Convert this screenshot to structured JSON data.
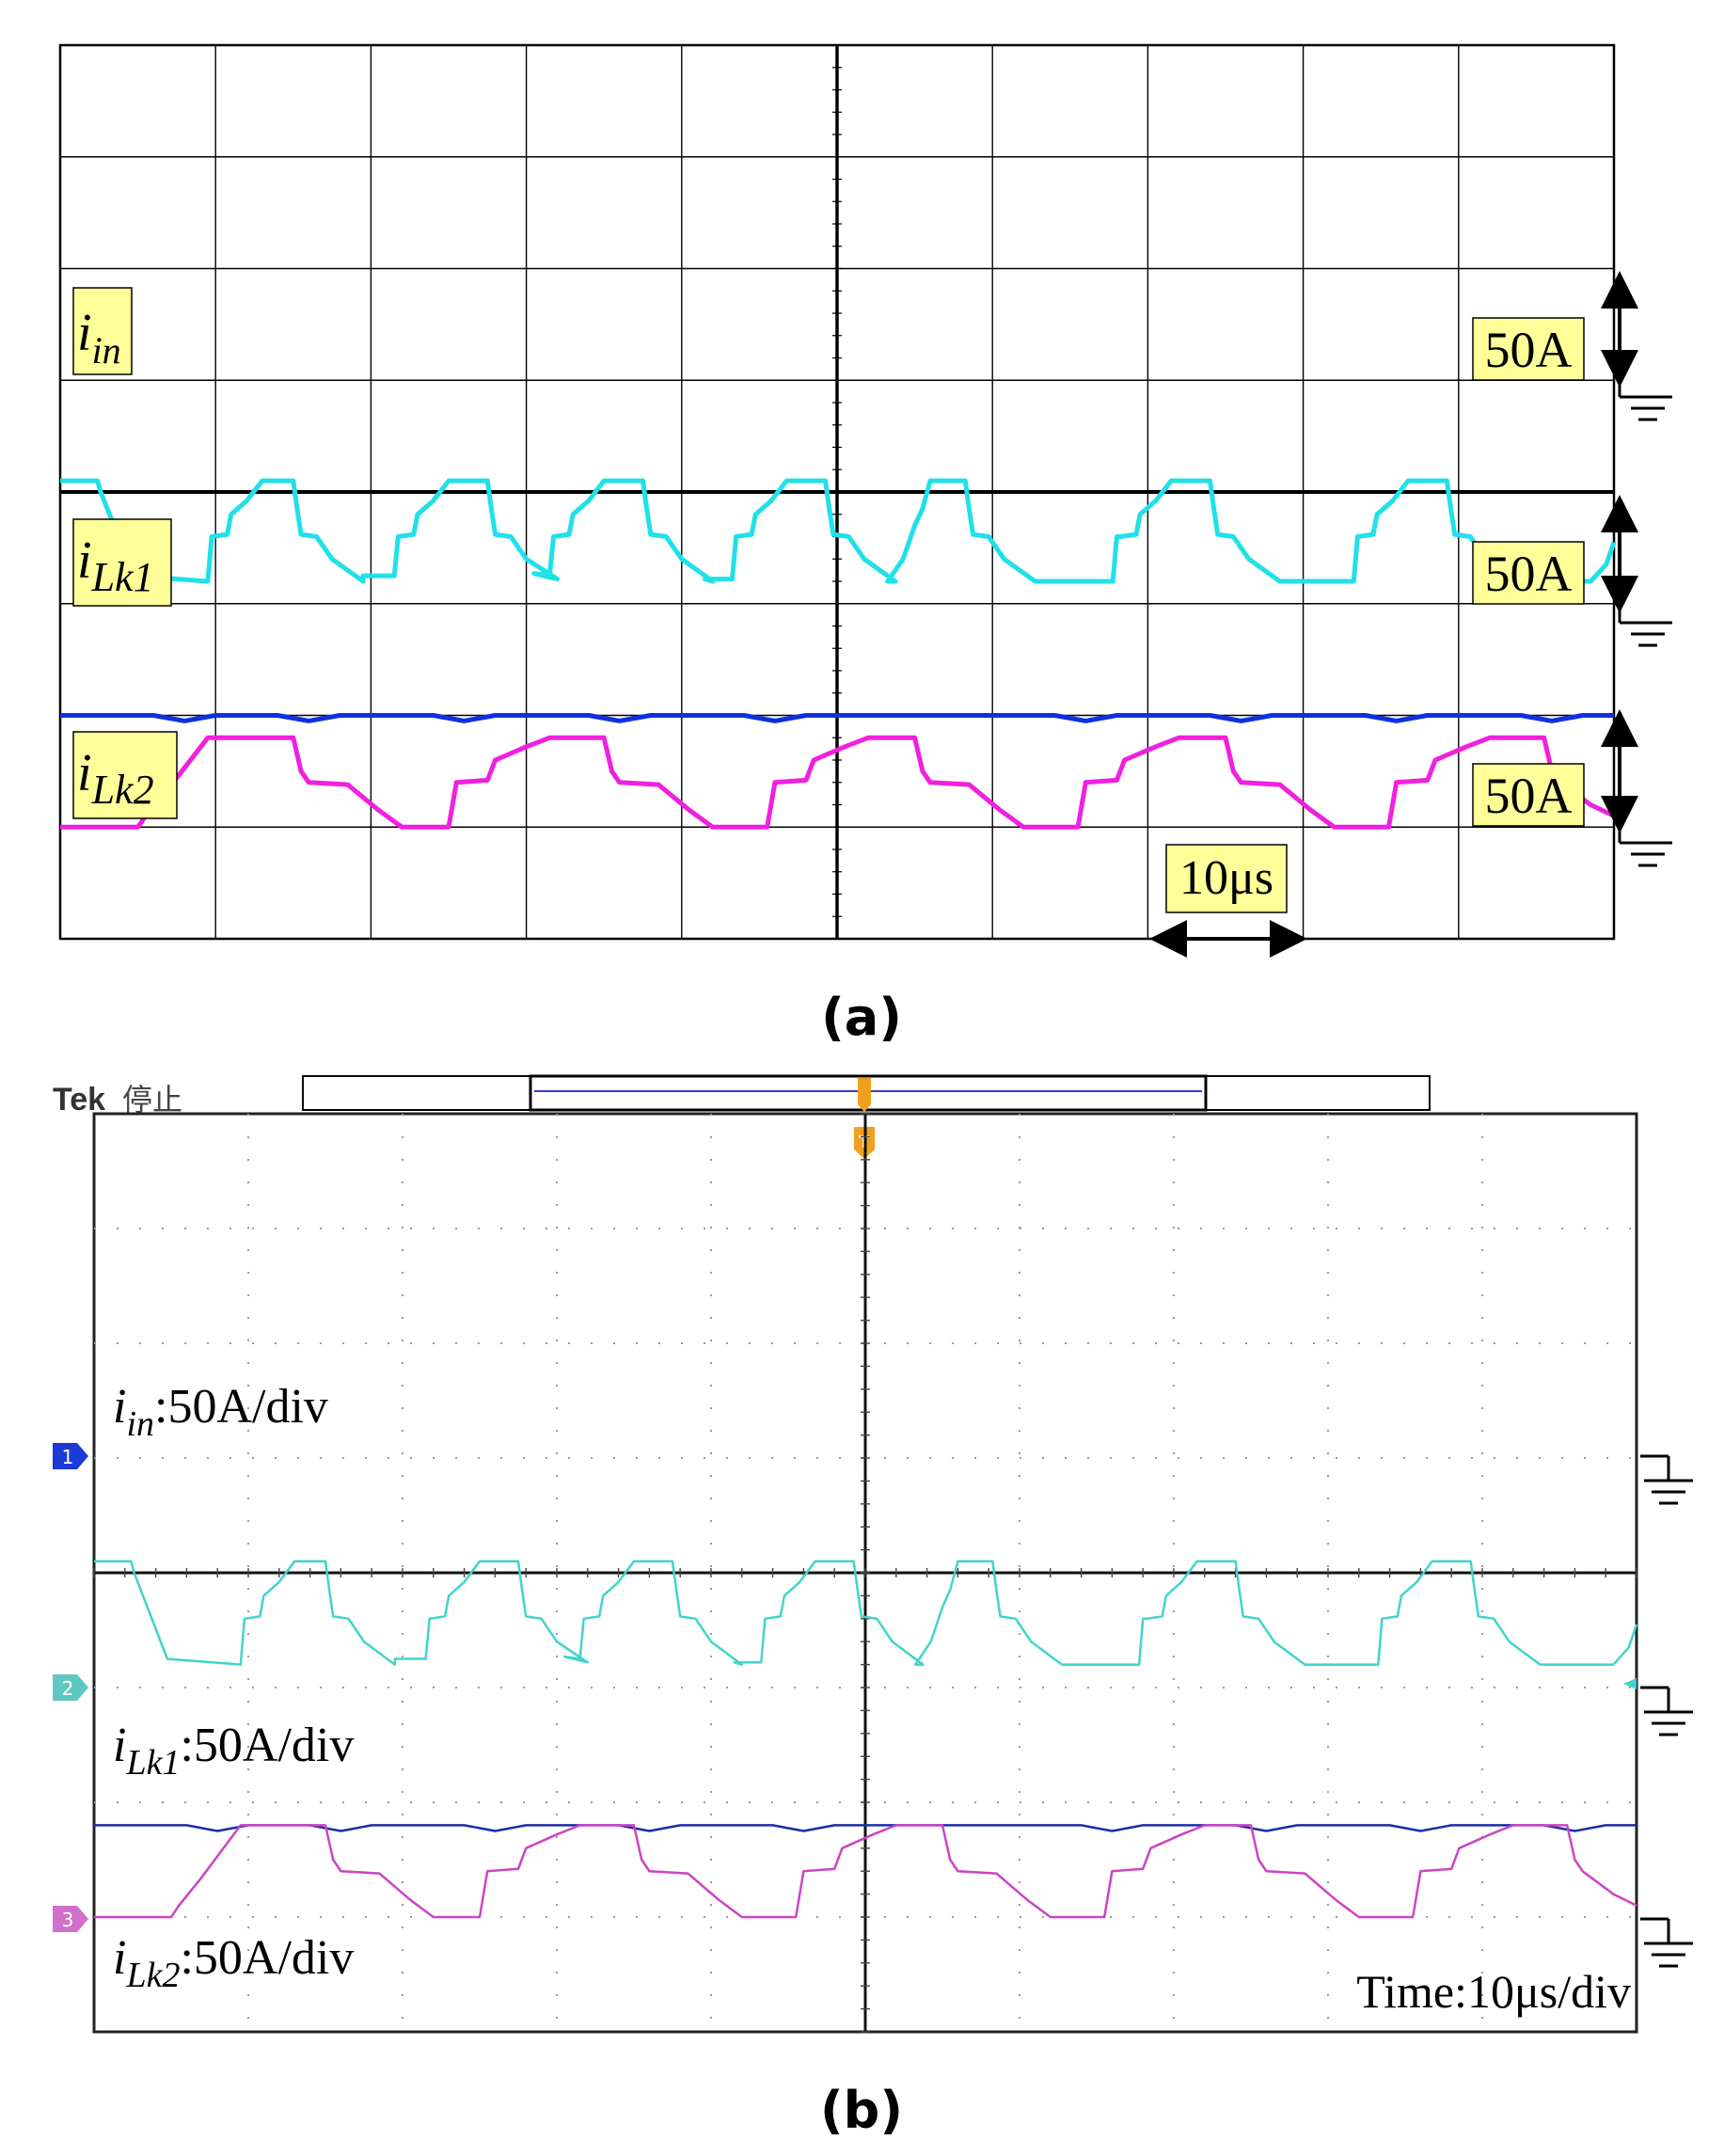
{
  "panels": {
    "a": {
      "caption": "(a)"
    },
    "b": {
      "caption": "(b)",
      "brand": "Tek",
      "status": "停止"
    }
  },
  "colors": {
    "in": "#1030e0",
    "lk1": "#20e0e8",
    "lk2": "#f020e0",
    "in_b": "#1c2ea8",
    "lk1_b": "#40d4cc",
    "lk2_b": "#cc44c4",
    "label_bg": "#ffff99",
    "trigger": "#f0a020"
  },
  "chart_data": [
    {
      "type": "line",
      "panel": "a",
      "grid": true,
      "x_divisions": 10,
      "y_divisions": 8,
      "series": [
        {
          "key": "in",
          "label_main": "i",
          "label_sub": "in",
          "scale_label": "50A",
          "values": [
            [
              0,
              2.0
            ],
            [
              0.6,
              2.0
            ],
            [
              0.8,
              1.95
            ],
            [
              1.0,
              2.0
            ],
            [
              1.4,
              2.0
            ],
            [
              1.6,
              1.95
            ],
            [
              1.8,
              2.0
            ],
            [
              2.4,
              2.0
            ],
            [
              2.6,
              1.95
            ],
            [
              2.8,
              2.0
            ],
            [
              3.4,
              2.0
            ],
            [
              3.6,
              1.95
            ],
            [
              3.8,
              2.0
            ],
            [
              4.4,
              2.0
            ],
            [
              4.6,
              1.95
            ],
            [
              4.8,
              2.0
            ],
            [
              6.4,
              2.0
            ],
            [
              6.6,
              1.95
            ],
            [
              6.8,
              2.0
            ],
            [
              7.4,
              2.0
            ],
            [
              7.6,
              1.95
            ],
            [
              7.8,
              2.0
            ],
            [
              8.4,
              2.0
            ],
            [
              8.6,
              1.95
            ],
            [
              8.8,
              2.0
            ],
            [
              9.4,
              2.0
            ],
            [
              9.6,
              1.95
            ],
            [
              9.8,
              2.0
            ],
            [
              10,
              2.0
            ]
          ]
        },
        {
          "key": "lk1",
          "label_main": "i",
          "label_sub": "Lk1",
          "scale_label": "50A",
          "values": [
            [
              0,
              4.1
            ],
            [
              0.48,
              4.1
            ],
            [
              0.52,
              4.0
            ],
            [
              0.95,
              3.25
            ],
            [
              1.9,
              3.2
            ],
            [
              1.95,
              3.6
            ],
            [
              2.15,
              3.62
            ],
            [
              2.2,
              3.8
            ],
            [
              2.4,
              3.92
            ],
            [
              2.6,
              4.1
            ],
            [
              3.0,
              4.1
            ],
            [
              3.05,
              3.85
            ],
            [
              3.1,
              3.62
            ],
            [
              3.3,
              3.6
            ],
            [
              3.5,
              3.4
            ],
            [
              3.9,
              3.2
            ],
            [
              3.9,
              3.25
            ],
            [
              4.3,
              3.25
            ],
            [
              4.35,
              3.6
            ],
            [
              4.55,
              3.62
            ],
            [
              4.6,
              3.8
            ],
            [
              4.8,
              3.92
            ],
            [
              5.0,
              4.1
            ],
            [
              5.5,
              4.1
            ],
            [
              5.55,
              3.85
            ],
            [
              5.6,
              3.62
            ],
            [
              5.8,
              3.6
            ],
            [
              6.0,
              3.4
            ],
            [
              6.4,
              3.22
            ],
            [
              6.1,
              3.27
            ],
            [
              6.3,
              3.25
            ],
            [
              6.35,
              3.6
            ],
            [
              6.55,
              3.62
            ],
            [
              6.6,
              3.8
            ],
            [
              6.8,
              3.92
            ],
            [
              7.0,
              4.1
            ],
            [
              7.5,
              4.1
            ],
            [
              7.55,
              3.85
            ],
            [
              7.6,
              3.62
            ],
            [
              7.8,
              3.6
            ],
            [
              8.0,
              3.4
            ],
            [
              8.4,
              3.2
            ],
            [
              8.3,
              3.22
            ],
            [
              8.65,
              3.22
            ],
            [
              8.7,
              3.6
            ],
            [
              8.9,
              3.62
            ],
            [
              8.95,
              3.8
            ],
            [
              9.15,
              3.92
            ],
            [
              9.35,
              4.1
            ],
            [
              9.85,
              4.1
            ],
            [
              9.9,
              3.85
            ],
            [
              9.95,
              3.62
            ],
            [
              10.15,
              3.6
            ],
            [
              10.35,
              3.4
            ],
            [
              10.75,
              3.2
            ],
            [
              10.65,
              3.2
            ],
            [
              10.85,
              3.4
            ],
            [
              11.0,
              3.7
            ],
            [
              11.1,
              3.85
            ],
            [
              11.2,
              4.1
            ],
            [
              11.65,
              4.1
            ],
            [
              11.7,
              3.85
            ],
            [
              11.75,
              3.62
            ],
            [
              11.95,
              3.6
            ],
            [
              12.15,
              3.4
            ],
            [
              12.55,
              3.2
            ],
            [
              13.55,
              3.2
            ],
            [
              13.6,
              3.6
            ],
            [
              13.65,
              3.6
            ],
            [
              13.85,
              3.62
            ],
            [
              13.9,
              3.8
            ],
            [
              14.1,
              3.92
            ],
            [
              14.3,
              4.1
            ],
            [
              14.8,
              4.1
            ],
            [
              14.85,
              3.85
            ],
            [
              14.9,
              3.62
            ],
            [
              15.1,
              3.6
            ],
            [
              15.3,
              3.4
            ],
            [
              15.7,
              3.2
            ],
            [
              16.65,
              3.2
            ],
            [
              16.7,
              3.6
            ],
            [
              16.9,
              3.62
            ],
            [
              16.95,
              3.8
            ],
            [
              17.15,
              3.92
            ],
            [
              17.35,
              4.1
            ],
            [
              17.85,
              4.1
            ],
            [
              17.9,
              3.85
            ],
            [
              17.95,
              3.62
            ],
            [
              18.15,
              3.6
            ],
            [
              18.35,
              3.4
            ],
            [
              18.75,
              3.2
            ],
            [
              19.7,
              3.2
            ],
            [
              19.9,
              3.35
            ],
            [
              20.0,
              3.55
            ]
          ]
        },
        {
          "key": "lk2",
          "label_main": "i",
          "label_sub": "Lk2",
          "scale_label": "50A",
          "values": [
            [
              0,
              1.0
            ],
            [
              0.5,
              1.0
            ],
            [
              0.55,
              1.1
            ],
            [
              0.7,
              1.35
            ],
            [
              0.95,
              1.8
            ],
            [
              1.5,
              1.8
            ],
            [
              1.55,
              1.5
            ],
            [
              1.6,
              1.4
            ],
            [
              1.85,
              1.38
            ],
            [
              2.05,
              1.15
            ],
            [
              2.2,
              1.0
            ],
            [
              2.5,
              1.0
            ],
            [
              2.55,
              1.4
            ],
            [
              2.75,
              1.42
            ],
            [
              2.8,
              1.6
            ],
            [
              3.0,
              1.72
            ],
            [
              3.15,
              1.8
            ],
            [
              3.5,
              1.8
            ],
            [
              3.55,
              1.5
            ],
            [
              3.6,
              1.4
            ],
            [
              3.85,
              1.38
            ],
            [
              4.05,
              1.15
            ],
            [
              4.2,
              1.0
            ],
            [
              4.55,
              1.0
            ],
            [
              4.6,
              1.4
            ],
            [
              4.8,
              1.42
            ],
            [
              4.85,
              1.6
            ],
            [
              5.05,
              1.72
            ],
            [
              5.2,
              1.8
            ],
            [
              5.5,
              1.8
            ],
            [
              5.55,
              1.5
            ],
            [
              5.6,
              1.4
            ],
            [
              5.85,
              1.38
            ],
            [
              6.05,
              1.15
            ],
            [
              6.2,
              1.0
            ],
            [
              6.55,
              1.0
            ],
            [
              6.6,
              1.4
            ],
            [
              6.8,
              1.42
            ],
            [
              6.85,
              1.6
            ],
            [
              7.05,
              1.72
            ],
            [
              7.2,
              1.8
            ],
            [
              7.5,
              1.8
            ],
            [
              7.55,
              1.5
            ],
            [
              7.6,
              1.4
            ],
            [
              7.85,
              1.38
            ],
            [
              8.05,
              1.15
            ],
            [
              8.2,
              1.0
            ],
            [
              8.55,
              1.0
            ],
            [
              8.6,
              1.4
            ],
            [
              8.8,
              1.42
            ],
            [
              8.85,
              1.6
            ],
            [
              9.05,
              1.72
            ],
            [
              9.2,
              1.8
            ],
            [
              9.55,
              1.8
            ],
            [
              9.6,
              1.5
            ],
            [
              9.65,
              1.4
            ],
            [
              9.85,
              1.2
            ],
            [
              10.0,
              1.1
            ]
          ]
        }
      ],
      "time_scale_label": "10μs"
    },
    {
      "type": "line",
      "panel": "b",
      "grid": true,
      "x_divisions": 10,
      "y_divisions": 8,
      "series": [
        {
          "key": "in_b",
          "marker": "1",
          "label_main": "i",
          "label_sub": "in",
          "label_rest": ":50A/div"
        },
        {
          "key": "lk1_b",
          "marker": "2",
          "label_main": "i",
          "label_sub": "Lk1",
          "label_rest": ":50A/div"
        },
        {
          "key": "lk2_b",
          "marker": "3",
          "label_main": "i",
          "label_sub": "Lk2",
          "label_rest": ":50A/div"
        }
      ],
      "time_label": "Time:10μs/div"
    }
  ]
}
